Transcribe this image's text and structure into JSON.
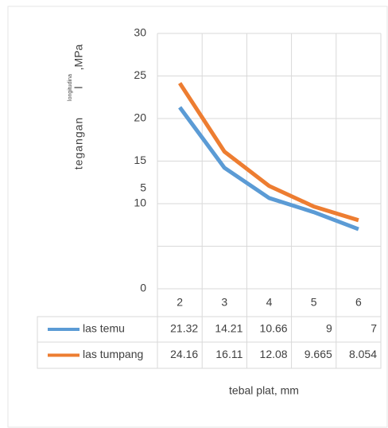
{
  "chart_data": {
    "type": "line",
    "y_label": {
      "main": "tegangan",
      "superscript": "longitudina",
      "letter": "l",
      "unit": ",MPa"
    },
    "x_label": "tebal plat, mm",
    "categories": [
      "2",
      "3",
      "4",
      "5",
      "6"
    ],
    "series": [
      {
        "name": "las temu",
        "color": "#5b9bd5",
        "values": [
          21.32,
          14.21,
          10.66,
          9,
          7
        ]
      },
      {
        "name": "las tumpang",
        "color": "#ed7d31",
        "values": [
          24.16,
          16.11,
          12.08,
          9.665,
          8.054
        ]
      }
    ],
    "ylim": [
      0,
      30
    ],
    "yticks": [
      0,
      10,
      15,
      20,
      25,
      30
    ],
    "gridlines": [
      0,
      5,
      10,
      15,
      20,
      25,
      30
    ],
    "stray_tick_label": "5",
    "grid": true,
    "data_table": true
  }
}
